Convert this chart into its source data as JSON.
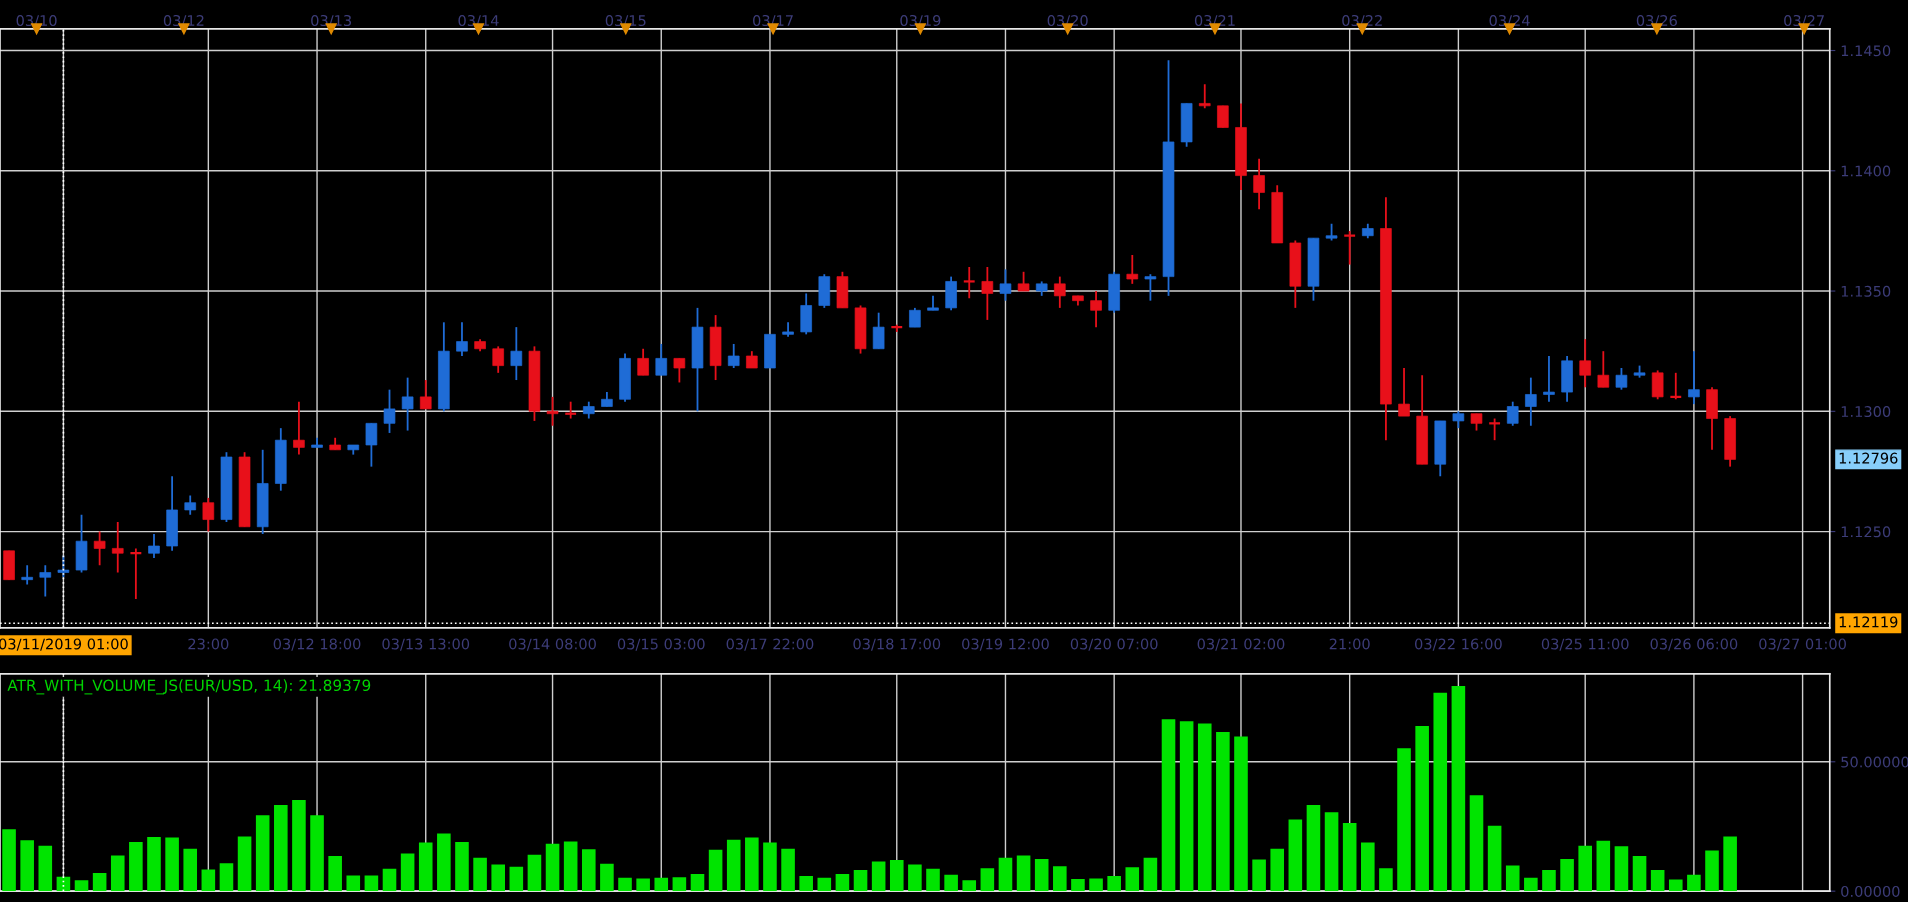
{
  "chart_data": [
    {
      "type": "candlestick",
      "categories": [
        null,
        null,
        null,
        "03/11/2019 01:00",
        null,
        null,
        null,
        null,
        null,
        null,
        null,
        "23:00",
        null,
        null,
        null,
        null,
        null,
        "03/12 18:00",
        null,
        null,
        null,
        null,
        null,
        "03/13 13:00",
        null,
        null,
        null,
        null,
        null,
        null,
        "03/14 08:00",
        null,
        null,
        null,
        null,
        null,
        "03/15 03:00",
        null,
        null,
        null,
        null,
        null,
        "03/17 22:00",
        null,
        null,
        null,
        null,
        null,
        null,
        "03/18 17:00",
        null,
        null,
        null,
        null,
        null,
        "03/19 12:00",
        null,
        null,
        null,
        null,
        null,
        "03/20 07:00",
        null,
        null,
        null,
        null,
        null,
        null,
        "03/21 02:00",
        null,
        null,
        null,
        null,
        null,
        "21:00",
        null,
        null,
        null,
        null,
        null,
        "03/22 16:00",
        null,
        null,
        null,
        null,
        null,
        null,
        "03/25 11:00",
        null,
        null,
        null,
        null,
        null,
        "03/26 06:00",
        null,
        null,
        null,
        null,
        null,
        "03/27 01:00",
        null
      ],
      "ohlc": [
        [
          1.1242,
          1.1242,
          1.123,
          1.123
        ],
        [
          1.123,
          1.1236,
          1.1228,
          1.1231
        ],
        [
          1.1231,
          1.1236,
          1.1223,
          1.1233
        ],
        [
          1.1233,
          1.124,
          1.1231,
          1.1234
        ],
        [
          1.1234,
          1.1257,
          1.1233,
          1.1246
        ],
        [
          1.1246,
          1.125,
          1.1236,
          1.1243
        ],
        [
          1.1243,
          1.1254,
          1.1233,
          1.1241
        ],
        [
          1.1241,
          1.1243,
          1.1222,
          1.1241
        ],
        [
          1.1241,
          1.1249,
          1.1239,
          1.1244
        ],
        [
          1.1244,
          1.1273,
          1.1242,
          1.1259
        ],
        [
          1.1259,
          1.1265,
          1.1257,
          1.1262
        ],
        [
          1.1262,
          1.1264,
          1.125,
          1.1255
        ],
        [
          1.1255,
          1.1283,
          1.1254,
          1.1281
        ],
        [
          1.1281,
          1.1283,
          1.1252,
          1.1252
        ],
        [
          1.1252,
          1.1284,
          1.1249,
          1.127
        ],
        [
          1.127,
          1.1293,
          1.1267,
          1.1288
        ],
        [
          1.1288,
          1.1304,
          1.1282,
          1.1285
        ],
        [
          1.1285,
          1.1289,
          1.1285,
          1.1286
        ],
        [
          1.1286,
          1.1289,
          1.1284,
          1.1284
        ],
        [
          1.1284,
          1.1286,
          1.1282,
          1.1286
        ],
        [
          1.1286,
          1.1295,
          1.1277,
          1.1295
        ],
        [
          1.1295,
          1.1309,
          1.1291,
          1.1301
        ],
        [
          1.1301,
          1.1314,
          1.1292,
          1.1306
        ],
        [
          1.1306,
          1.1313,
          1.1301,
          1.1301
        ],
        [
          1.1301,
          1.1337,
          1.13,
          1.1325
        ],
        [
          1.1325,
          1.1337,
          1.1323,
          1.1329
        ],
        [
          1.1329,
          1.133,
          1.1325,
          1.1326
        ],
        [
          1.1326,
          1.1327,
          1.1316,
          1.1319
        ],
        [
          1.1319,
          1.1335,
          1.1313,
          1.1325
        ],
        [
          1.1325,
          1.1327,
          1.1296,
          1.13
        ],
        [
          1.13,
          1.1306,
          1.1294,
          1.1299
        ],
        [
          1.1299,
          1.1304,
          1.1297,
          1.1299
        ],
        [
          1.1299,
          1.1304,
          1.1297,
          1.1302
        ],
        [
          1.1302,
          1.1308,
          1.1302,
          1.1305
        ],
        [
          1.1305,
          1.1324,
          1.1304,
          1.1322
        ],
        [
          1.1322,
          1.1326,
          1.1315,
          1.1315
        ],
        [
          1.1315,
          1.1328,
          1.1315,
          1.1322
        ],
        [
          1.1322,
          1.1322,
          1.1312,
          1.1318
        ],
        [
          1.1318,
          1.1343,
          1.13,
          1.1335
        ],
        [
          1.1335,
          1.134,
          1.1313,
          1.1319
        ],
        [
          1.1319,
          1.1328,
          1.1318,
          1.1323
        ],
        [
          1.1323,
          1.1325,
          1.1318,
          1.1318
        ],
        [
          1.1318,
          1.1332,
          1.1318,
          1.1332
        ],
        [
          1.1332,
          1.1337,
          1.1331,
          1.1333
        ],
        [
          1.1333,
          1.1349,
          1.1332,
          1.1344
        ],
        [
          1.1344,
          1.1357,
          1.1343,
          1.1356
        ],
        [
          1.1356,
          1.1358,
          1.1343,
          1.1343
        ],
        [
          1.1343,
          1.1344,
          1.1324,
          1.1326
        ],
        [
          1.1326,
          1.1341,
          1.1326,
          1.1335
        ],
        [
          1.1335,
          1.1336,
          1.1333,
          1.1335
        ],
        [
          1.1335,
          1.1343,
          1.1335,
          1.1342
        ],
        [
          1.1342,
          1.1348,
          1.1342,
          1.1343
        ],
        [
          1.1343,
          1.1356,
          1.1342,
          1.1354
        ],
        [
          1.1354,
          1.136,
          1.1347,
          1.1354
        ],
        [
          1.1354,
          1.136,
          1.1338,
          1.1349
        ],
        [
          1.1349,
          1.1359,
          1.1346,
          1.1353
        ],
        [
          1.1353,
          1.1358,
          1.135,
          1.135
        ],
        [
          1.135,
          1.1354,
          1.1348,
          1.1353
        ],
        [
          1.1353,
          1.1356,
          1.1343,
          1.1348
        ],
        [
          1.1348,
          1.1348,
          1.1344,
          1.1346
        ],
        [
          1.1346,
          1.135,
          1.1335,
          1.1342
        ],
        [
          1.1342,
          1.1358,
          1.1341,
          1.1357
        ],
        [
          1.1357,
          1.1365,
          1.1353,
          1.1355
        ],
        [
          1.1355,
          1.1357,
          1.1346,
          1.1356
        ],
        [
          1.1356,
          1.1446,
          1.1348,
          1.1412
        ],
        [
          1.1412,
          1.1428,
          1.141,
          1.1428
        ],
        [
          1.1428,
          1.1436,
          1.1426,
          1.1427
        ],
        [
          1.1427,
          1.1427,
          1.1418,
          1.1418
        ],
        [
          1.1418,
          1.1428,
          1.1392,
          1.1398
        ],
        [
          1.1398,
          1.1405,
          1.1384,
          1.1391
        ],
        [
          1.1391,
          1.1394,
          1.137,
          1.137
        ],
        [
          1.137,
          1.1371,
          1.1343,
          1.1352
        ],
        [
          1.1352,
          1.1372,
          1.1346,
          1.1372
        ],
        [
          1.1372,
          1.1378,
          1.1371,
          1.1373
        ],
        [
          1.1373,
          1.1375,
          1.1361,
          1.1373
        ],
        [
          1.1373,
          1.1378,
          1.1372,
          1.1376
        ],
        [
          1.1376,
          1.1389,
          1.1288,
          1.1303
        ],
        [
          1.1303,
          1.1318,
          1.1298,
          1.1298
        ],
        [
          1.1298,
          1.1315,
          1.1278,
          1.1278
        ],
        [
          1.1278,
          1.1296,
          1.1273,
          1.1296
        ],
        [
          1.1296,
          1.13,
          1.1293,
          1.1299
        ],
        [
          1.1299,
          1.1299,
          1.1292,
          1.1295
        ],
        [
          1.1295,
          1.1297,
          1.1288,
          1.1295
        ],
        [
          1.1295,
          1.1304,
          1.1294,
          1.1302
        ],
        [
          1.1302,
          1.1314,
          1.1294,
          1.1307
        ],
        [
          1.1307,
          1.1323,
          1.1304,
          1.1308
        ],
        [
          1.1308,
          1.1323,
          1.1304,
          1.1321
        ],
        [
          1.1321,
          1.133,
          1.131,
          1.1315
        ],
        [
          1.1315,
          1.1325,
          1.131,
          1.131
        ],
        [
          1.131,
          1.1318,
          1.1309,
          1.1315
        ],
        [
          1.1315,
          1.1319,
          1.1314,
          1.1316
        ],
        [
          1.1316,
          1.1317,
          1.1305,
          1.1306
        ],
        [
          1.1306,
          1.1316,
          1.1305,
          1.1306
        ],
        [
          1.1306,
          1.1325,
          1.1303,
          1.1309
        ],
        [
          1.1309,
          1.131,
          1.1284,
          1.1297
        ],
        [
          1.1297,
          1.1298,
          1.1277,
          1.128
        ],
        null,
        null,
        null,
        null,
        null
      ],
      "colors": [
        "#e8101a",
        "#1f6cd6",
        "#1f6cd6",
        "#1f6cd6",
        "#1f6cd6",
        "#e8101a",
        "#e8101a",
        "#e8101a",
        "#1f6cd6",
        "#1f6cd6",
        "#1f6cd6",
        "#e8101a",
        "#1f6cd6",
        "#e8101a",
        "#1f6cd6",
        "#1f6cd6",
        "#e8101a",
        "#1f6cd6",
        "#e8101a",
        "#1f6cd6",
        "#1f6cd6",
        "#1f6cd6",
        "#1f6cd6",
        "#e8101a",
        "#1f6cd6",
        "#1f6cd6",
        "#e8101a",
        "#e8101a",
        "#1f6cd6",
        "#e8101a",
        "#e8101a",
        "#e8101a",
        "#1f6cd6",
        "#1f6cd6",
        "#1f6cd6",
        "#e8101a",
        "#1f6cd6",
        "#e8101a",
        "#1f6cd6",
        "#e8101a",
        "#1f6cd6",
        "#e8101a",
        "#1f6cd6",
        "#1f6cd6",
        "#1f6cd6",
        "#1f6cd6",
        "#e8101a",
        "#e8101a",
        "#1f6cd6",
        "#e8101a",
        "#1f6cd6",
        "#1f6cd6",
        "#1f6cd6",
        "#e8101a",
        "#e8101a",
        "#1f6cd6",
        "#e8101a",
        "#1f6cd6",
        "#e8101a",
        "#e8101a",
        "#e8101a",
        "#1f6cd6",
        "#e8101a",
        "#1f6cd6",
        "#1f6cd6",
        "#1f6cd6",
        "#e8101a",
        "#e8101a",
        "#e8101a",
        "#e8101a",
        "#e8101a",
        "#e8101a",
        "#1f6cd6",
        "#1f6cd6",
        "#e8101a",
        "#1f6cd6",
        "#e8101a",
        "#e8101a",
        "#e8101a",
        "#1f6cd6",
        "#1f6cd6",
        "#e8101a",
        "#e8101a",
        "#1f6cd6",
        "#1f6cd6",
        "#1f6cd6",
        "#1f6cd6",
        "#e8101a",
        "#e8101a",
        "#1f6cd6",
        "#1f6cd6",
        "#e8101a",
        "#e8101a",
        "#1f6cd6",
        "#e8101a",
        "#e8101a",
        null,
        null,
        null,
        null,
        null
      ],
      "ylim": [
        1.121,
        1.1459
      ],
      "yticks": [
        {
          "value": 1.125,
          "label": "1.1250"
        },
        {
          "value": 1.13,
          "label": "1.1300"
        },
        {
          "value": 1.135,
          "label": "1.1350"
        },
        {
          "value": 1.14,
          "label": "1.1400"
        },
        {
          "value": 1.145,
          "label": "1.1450"
        }
      ],
      "grid": true,
      "ref_lines": [
        {
          "axis": "x",
          "value": "03/11/2019 01:00",
          "color": "#ffffff",
          "line_style": "dotted"
        },
        {
          "axis": "y",
          "value": 1.12119,
          "label": "1.12119",
          "color": "#ffffff",
          "line_style": "dotted"
        }
      ],
      "annotations": [
        "1.12796",
        "03/10",
        "03/12",
        "03/13",
        "03/14",
        "03/15",
        "03/17",
        "03/19",
        "03/20",
        "03/21",
        "03/22",
        "03/24",
        "03/26",
        "03/27"
      ]
    },
    {
      "type": "bar",
      "title": "ATR_WITH_VOLUME_JS(EUR/USD, 14): 21.89379",
      "categories": [
        null,
        null,
        null,
        "03/11/2019 01:00",
        null,
        null,
        null,
        null,
        null,
        null,
        null,
        "23:00",
        null,
        null,
        null,
        null,
        null,
        "03/12 18:00",
        null,
        null,
        null,
        null,
        null,
        "03/13 13:00",
        null,
        null,
        null,
        null,
        null,
        null,
        "03/14 08:00",
        null,
        null,
        null,
        null,
        null,
        "03/15 03:00",
        null,
        null,
        null,
        null,
        null,
        "03/17 22:00",
        null,
        null,
        null,
        null,
        null,
        null,
        "03/18 17:00",
        null,
        null,
        null,
        null,
        null,
        "03/19 12:00",
        null,
        null,
        null,
        null,
        null,
        "03/20 07:00",
        null,
        null,
        null,
        null,
        null,
        null,
        "03/21 02:00",
        null,
        null,
        null,
        null,
        null,
        "21:00",
        null,
        null,
        null,
        null,
        null,
        "03/22 16:00",
        null,
        null,
        null,
        null,
        null,
        null,
        "03/25 11:00",
        null,
        null,
        null,
        null,
        null,
        "03/26 06:00",
        null,
        null,
        null,
        null,
        null,
        "03/27 01:00",
        null
      ],
      "values": [
        23.9,
        19.7,
        17.6,
        5.6,
        4.2,
        7.0,
        13.8,
        19.0,
        20.9,
        20.7,
        16.4,
        8.4,
        10.8,
        21.1,
        29.3,
        33.3,
        35.2,
        29.3,
        13.6,
        6.1,
        6.1,
        8.7,
        14.6,
        18.8,
        22.3,
        19.0,
        12.9,
        10.3,
        9.4,
        14.1,
        18.3,
        19.2,
        16.2,
        10.6,
        5.2,
        4.9,
        5.2,
        5.4,
        6.6,
        16.0,
        19.9,
        20.7,
        18.8,
        16.4,
        5.9,
        5.2,
        6.6,
        8.2,
        11.5,
        12.0,
        10.3,
        8.7,
        6.3,
        4.2,
        8.9,
        12.9,
        13.8,
        12.4,
        9.6,
        4.7,
        4.9,
        5.9,
        9.2,
        12.9,
        66.4,
        65.7,
        64.8,
        61.5,
        59.8,
        12.2,
        16.4,
        27.7,
        33.3,
        30.5,
        26.3,
        18.8,
        8.9,
        55.2,
        63.8,
        76.7,
        79.3,
        37.1,
        25.3,
        9.9,
        5.2,
        8.2,
        12.4,
        17.6,
        19.5,
        17.4,
        13.6,
        8.2,
        4.5,
        6.3,
        15.7,
        21.1,
        null,
        null,
        null,
        null,
        null
      ],
      "color": "#00e400",
      "ylim": [
        0,
        84
      ],
      "yticks": [
        {
          "value": 0,
          "label": "0.00000"
        },
        {
          "value": 50,
          "label": "50.00000"
        }
      ],
      "grid": true,
      "tick_labels": "y",
      "ref_lines": [
        {
          "axis": "x",
          "value": "03/11/2019 01:00",
          "color": "#ffffff",
          "line_style": "dotted"
        }
      ]
    }
  ]
}
